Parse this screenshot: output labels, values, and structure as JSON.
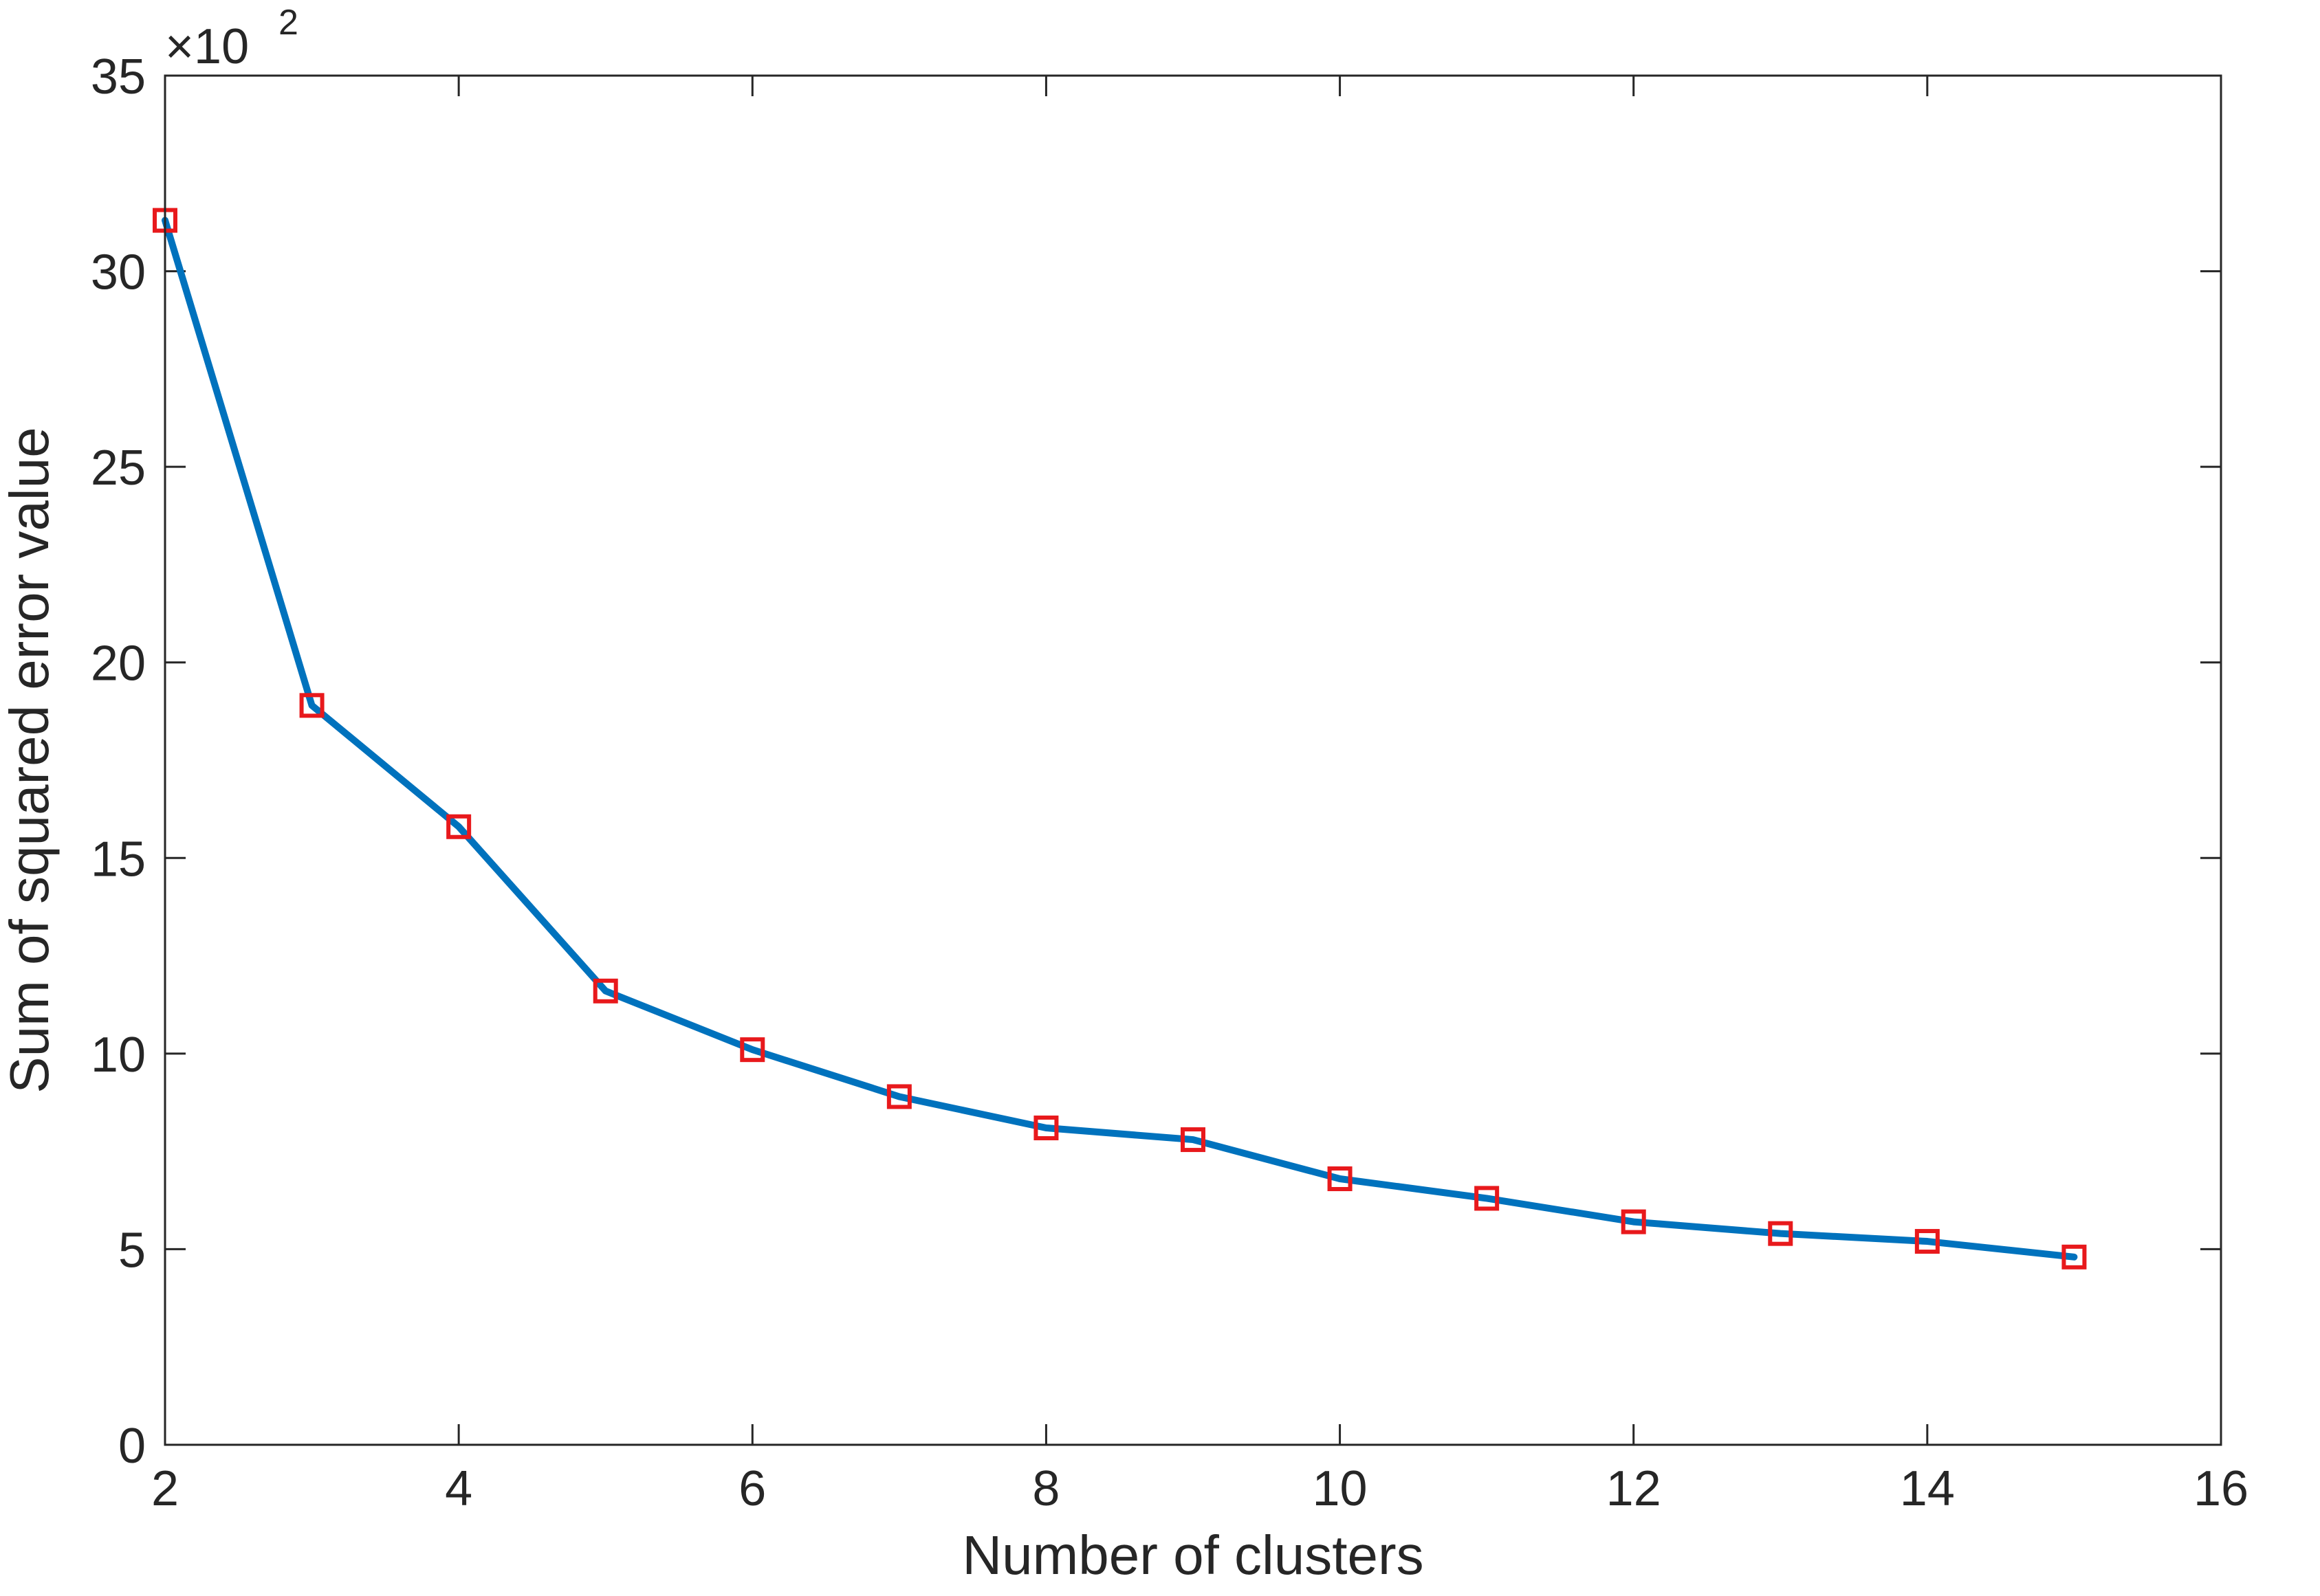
{
  "chart_data": {
    "type": "line",
    "title": "",
    "xlabel": "Number of clusters",
    "ylabel": "Sum of squared error value",
    "y_multiplier": "×10",
    "y_multiplier_exponent": "2",
    "xlim": [
      2,
      16
    ],
    "ylim": [
      0,
      35
    ],
    "x_ticks": [
      2,
      4,
      6,
      8,
      10,
      12,
      14,
      16
    ],
    "y_ticks": [
      0,
      5,
      10,
      15,
      20,
      25,
      30,
      35
    ],
    "grid": false,
    "legend": "none",
    "series": [
      {
        "line_color": "#0072bd",
        "marker": "square",
        "marker_color": "#e8191c",
        "x": [
          2,
          3,
          4,
          5,
          6,
          7,
          8,
          9,
          10,
          11,
          12,
          13,
          14,
          15
        ],
        "y": [
          31.3,
          18.9,
          15.8,
          11.6,
          10.1,
          8.9,
          8.1,
          7.8,
          6.8,
          6.3,
          5.7,
          5.4,
          5.2,
          4.8
        ]
      }
    ]
  }
}
